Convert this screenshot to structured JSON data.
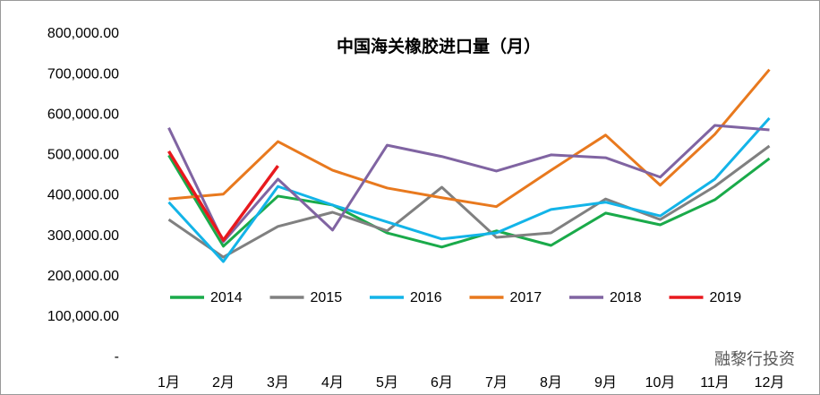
{
  "chart_data": {
    "type": "line",
    "title": "中国海关橡胶进口量（月）",
    "categories": [
      "1月",
      "2月",
      "3月",
      "4月",
      "5月",
      "6月",
      "7月",
      "8月",
      "9月",
      "10月",
      "11月",
      "12月"
    ],
    "series": [
      {
        "name": "2014",
        "color": "#1aaa4a",
        "values": [
          500000,
          275000,
          399000,
          377000,
          308000,
          273000,
          313000,
          277000,
          357000,
          328000,
          390000,
          492000
        ]
      },
      {
        "name": "2015",
        "color": "#808080",
        "values": [
          341000,
          248000,
          324000,
          359000,
          313000,
          421000,
          297000,
          308000,
          392000,
          341000,
          423000,
          523000
        ]
      },
      {
        "name": "2016",
        "color": "#13b4e8",
        "values": [
          384000,
          237000,
          423000,
          377000,
          335000,
          293000,
          308000,
          366000,
          384000,
          350000,
          441000,
          592000
        ]
      },
      {
        "name": "2017",
        "color": "#e8791e",
        "values": [
          392000,
          404000,
          534000,
          463000,
          419000,
          395000,
          373000,
          463000,
          550000,
          426000,
          552000,
          712000
        ]
      },
      {
        "name": "2018",
        "color": "#8064a2",
        "values": [
          568000,
          286000,
          441000,
          315000,
          525000,
          497000,
          461000,
          501000,
          494000,
          446000,
          574000,
          563000
        ]
      },
      {
        "name": "2019",
        "color": "#e8191e",
        "values": [
          510000,
          290000,
          474000,
          null,
          null,
          null,
          null,
          null,
          null,
          null,
          null,
          null
        ]
      }
    ],
    "ylim": [
      0,
      800000
    ],
    "yticks": [
      {
        "value": 0,
        "label": "-"
      },
      {
        "value": 100000,
        "label": "100,000.00"
      },
      {
        "value": 200000,
        "label": "200,000.00"
      },
      {
        "value": 300000,
        "label": "300,000.00"
      },
      {
        "value": 400000,
        "label": "400,000.00"
      },
      {
        "value": 500000,
        "label": "500,000.00"
      },
      {
        "value": 600000,
        "label": "600,000.00"
      },
      {
        "value": 700000,
        "label": "700,000.00"
      },
      {
        "value": 800000,
        "label": "800,000.00"
      }
    ],
    "grid": false,
    "watermark": "融黎行投资"
  }
}
